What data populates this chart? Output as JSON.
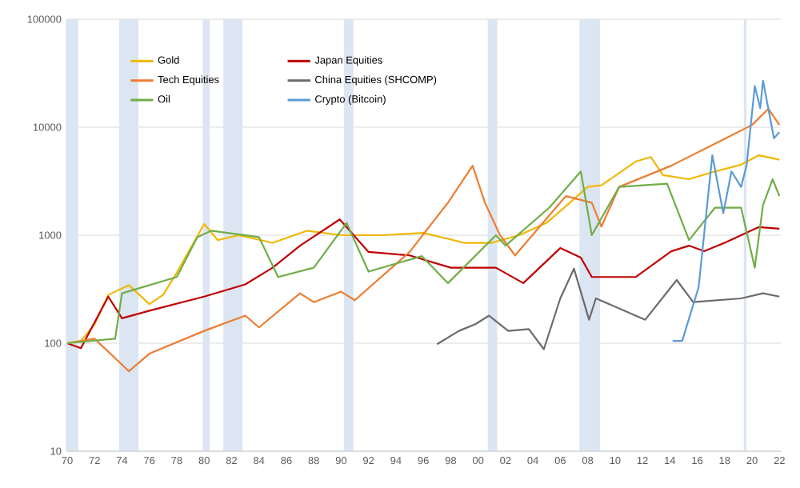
{
  "chart_data": {
    "type": "line",
    "log": "y",
    "grid": "y",
    "legend": "top left",
    "marker": "none",
    "line_style": "solid",
    "xlim": [
      1970,
      2022.1
    ],
    "ylim": [
      10,
      100000
    ],
    "xticks": [
      {
        "value": 1970,
        "label": "70"
      },
      {
        "value": 1972,
        "label": "72"
      },
      {
        "value": 1974,
        "label": "74"
      },
      {
        "value": 1976,
        "label": "76"
      },
      {
        "value": 1978,
        "label": "78"
      },
      {
        "value": 1980,
        "label": "80"
      },
      {
        "value": 1982,
        "label": "82"
      },
      {
        "value": 1984,
        "label": "84"
      },
      {
        "value": 1986,
        "label": "86"
      },
      {
        "value": 1988,
        "label": "88"
      },
      {
        "value": 1990,
        "label": "90"
      },
      {
        "value": 1992,
        "label": "92"
      },
      {
        "value": 1994,
        "label": "94"
      },
      {
        "value": 1996,
        "label": "96"
      },
      {
        "value": 1998,
        "label": "98"
      },
      {
        "value": 2000,
        "label": "00"
      },
      {
        "value": 2002,
        "label": "02"
      },
      {
        "value": 2004,
        "label": "04"
      },
      {
        "value": 2006,
        "label": "06"
      },
      {
        "value": 2008,
        "label": "08"
      },
      {
        "value": 2010,
        "label": "10"
      },
      {
        "value": 2012,
        "label": "12"
      },
      {
        "value": 2014,
        "label": "14"
      },
      {
        "value": 2016,
        "label": "16"
      },
      {
        "value": 2018,
        "label": "18"
      },
      {
        "value": 2020,
        "label": "20"
      },
      {
        "value": 2022,
        "label": "22"
      }
    ],
    "yticks": [
      10,
      100,
      1000,
      10000,
      100000
    ],
    "bands": [
      {
        "axis": "x",
        "from": 1969.9,
        "to": 1970.8,
        "color": "#dce6f2"
      },
      {
        "axis": "x",
        "from": 1973.8,
        "to": 1975.2,
        "color": "#dce6f2"
      },
      {
        "axis": "x",
        "from": 1979.9,
        "to": 1980.4,
        "color": "#dce6f2"
      },
      {
        "axis": "x",
        "from": 1981.4,
        "to": 1982.8,
        "color": "#dce6f2"
      },
      {
        "axis": "x",
        "from": 1990.2,
        "to": 1990.9,
        "color": "#dce6f2"
      },
      {
        "axis": "x",
        "from": 2000.7,
        "to": 2001.4,
        "color": "#dce6f2"
      },
      {
        "axis": "x",
        "from": 2007.4,
        "to": 2008.9,
        "color": "#dce6f2"
      },
      {
        "axis": "x",
        "from": 2019.4,
        "to": 2019.6,
        "color": "#dce6f2"
      }
    ],
    "series": [
      {
        "name": "Gold",
        "color": "#f0b800",
        "x": [
          1970,
          1971,
          1972,
          1973,
          1974.5,
          1976,
          1977,
          1978,
          1980,
          1981,
          1982.5,
          1985,
          1987.5,
          1990,
          1993,
          1996,
          1999,
          2001,
          2003,
          2005,
          2006.5,
          2008,
          2009,
          2011.5,
          2012.6,
          2013.5,
          2015.4,
          2017,
          2019.2,
          2020.5,
          2022
        ],
        "values": [
          100,
          105,
          150,
          280,
          345,
          230,
          280,
          450,
          1270,
          900,
          1000,
          850,
          1100,
          1000,
          1000,
          1050,
          850,
          850,
          1000,
          1300,
          1900,
          2800,
          2900,
          4800,
          5300,
          3600,
          3300,
          3800,
          4500,
          5500,
          5000
        ]
      },
      {
        "name": "Japan Equities",
        "color": "#c00000",
        "x": [
          1970,
          1971,
          1973,
          1974,
          1976,
          1980,
          1983,
          1985,
          1987,
          1989.9,
          1992,
          1995,
          1998,
          2001.3,
          2003.3,
          2006,
          2007.5,
          2008.3,
          2011.5,
          2014.1,
          2015.4,
          2016.5,
          2018,
          2020.5,
          2022
        ],
        "values": [
          100,
          90,
          270,
          170,
          200,
          270,
          350,
          500,
          800,
          1400,
          700,
          650,
          500,
          500,
          360,
          760,
          620,
          410,
          410,
          710,
          800,
          710,
          850,
          1190,
          1150
        ]
      },
      {
        "name": "Tech Equities",
        "color": "#ed7d31",
        "x": [
          1970,
          1972,
          1974.5,
          1976,
          1980,
          1983,
          1984,
          1987,
          1988,
          1990,
          1991,
          1995,
          1997.8,
          1999.6,
          2000.5,
          2001.6,
          2002.7,
          2006.4,
          2008.3,
          2009,
          2010.3,
          2014.1,
          2018,
          2020,
          2021.2,
          2022
        ],
        "values": [
          100,
          110,
          55,
          80,
          130,
          180,
          140,
          290,
          240,
          300,
          250,
          700,
          2000,
          4400,
          2000,
          1000,
          650,
          2300,
          2000,
          1200,
          2800,
          4400,
          7800,
          10500,
          14800,
          10500
        ]
      },
      {
        "name": "China Equities (SHCOMP)",
        "color": "#6b6b6b",
        "x": [
          1997,
          1998.6,
          1999.8,
          2000.8,
          2002.2,
          2003.7,
          2004.8,
          2006,
          2007,
          2008.1,
          2008.6,
          2012.2,
          2014.5,
          2015.7,
          2019.2,
          2020.8,
          2022
        ],
        "values": [
          98,
          130,
          150,
          180,
          130,
          135,
          88,
          260,
          490,
          165,
          260,
          165,
          385,
          240,
          260,
          290,
          270
        ]
      },
      {
        "name": "Oil",
        "color": "#70ad47",
        "x": [
          1970,
          1973.5,
          1974,
          1978,
          1979.5,
          1980.5,
          1984,
          1985.4,
          1988,
          1990.4,
          1992,
          1995.9,
          1997.8,
          2001.3,
          2002,
          2005.2,
          2007.5,
          2008.3,
          2010.3,
          2013.8,
          2015.4,
          2017.3,
          2019.2,
          2020.2,
          2020.8,
          2021.5,
          2022
        ],
        "values": [
          100,
          110,
          290,
          410,
          960,
          1100,
          960,
          410,
          500,
          1300,
          460,
          640,
          360,
          1000,
          800,
          1800,
          3900,
          1000,
          2800,
          3000,
          900,
          1800,
          1800,
          500,
          1900,
          3300,
          2300
        ]
      },
      {
        "name": "Crypto (Bitcoin)",
        "color": "#5b9bd5",
        "x": [
          2014.2,
          2014.9,
          2016.1,
          2017.1,
          2017.9,
          2018.5,
          2019.2,
          2019.6,
          2020.2,
          2020.6,
          2020.8,
          2021.6,
          2022
        ],
        "values": [
          105,
          105,
          330,
          5500,
          1600,
          3900,
          2800,
          4400,
          24000,
          15000,
          27000,
          7900,
          9000
        ]
      }
    ]
  }
}
